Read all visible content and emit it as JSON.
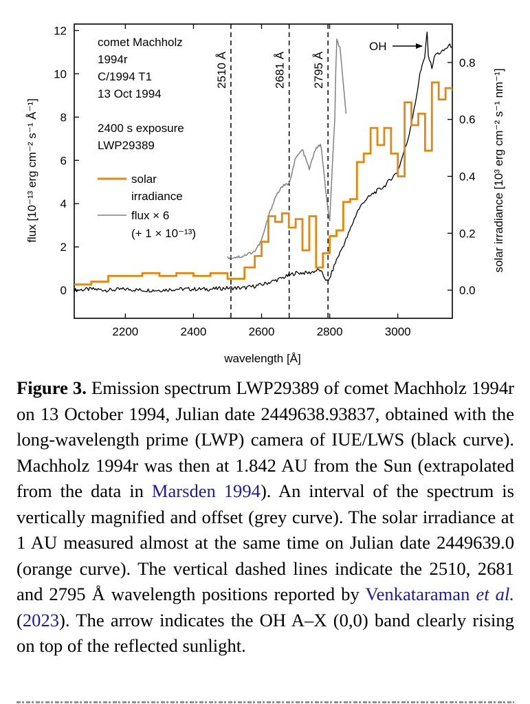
{
  "chart_data": {
    "type": "line",
    "xlabel": "wavelength [Å]",
    "ylabel_left": "flux [10⁻¹³ erg cm⁻² s⁻¹ Å⁻¹]",
    "ylabel_right": "solar irradiance [10³ erg cm⁻² s⁻¹ nm⁻¹]",
    "xlim": [
      2050,
      3160
    ],
    "ylim_left": [
      -1.3,
      12.3
    ],
    "ylim_right": [
      -0.0988,
      0.935
    ],
    "x_ticks": [
      2200,
      2400,
      2600,
      2800,
      3000
    ],
    "y_ticks_left": [
      0,
      2,
      4,
      6,
      8,
      10,
      12
    ],
    "y_ticks_right": [
      0.0,
      0.2,
      0.4,
      0.6,
      0.8
    ],
    "info_text": [
      "comet Machholz",
      "1994r",
      "C/1994 T1",
      "13 Oct 1994",
      "2400 s exposure",
      "LWP29389"
    ],
    "legend": {
      "solar": [
        "solar",
        "irradiance"
      ],
      "flux": [
        "flux × 6",
        "(+ 1 × 10⁻¹³)"
      ]
    },
    "vlines": [
      {
        "x": 2510,
        "label": "2510 Å"
      },
      {
        "x": 2681,
        "label": "2681 Å"
      },
      {
        "x": 2795,
        "label": "2795 Å"
      }
    ],
    "annotation": {
      "text": "OH",
      "x": 3085,
      "y": 11.7
    },
    "colors": {
      "black": "#000000",
      "grey": "#808080",
      "orange": "#E8860A"
    },
    "series": [
      {
        "name": "comet spectrum (black)",
        "axis": "left",
        "x": [
          2050,
          2100,
          2150,
          2200,
          2250,
          2300,
          2350,
          2400,
          2450,
          2500,
          2550,
          2600,
          2650,
          2700,
          2740,
          2770,
          2795,
          2820,
          2850,
          2880,
          2900,
          2930,
          2960,
          3000,
          3030,
          3050,
          3065,
          3080,
          3085,
          3090,
          3100,
          3110,
          3130,
          3150,
          3160
        ],
        "y": [
          0.0,
          0.05,
          0.0,
          0.05,
          0.0,
          0.0,
          0.05,
          0.05,
          0.05,
          0.1,
          0.1,
          0.25,
          0.5,
          0.8,
          0.8,
          0.95,
          0.35,
          1.4,
          2.4,
          3.6,
          4.1,
          4.5,
          4.8,
          5.5,
          7.0,
          8.5,
          10.0,
          10.8,
          12.1,
          10.8,
          10.3,
          10.9,
          11.0,
          11.3,
          11.3
        ]
      },
      {
        "name": "flux × 6 (+ 1 × 10⁻¹³) (grey)",
        "axis": "left",
        "x": [
          2500,
          2540,
          2580,
          2600,
          2620,
          2640,
          2660,
          2680,
          2700,
          2720,
          2740,
          2760,
          2775,
          2790,
          2800,
          2815,
          2820,
          2830,
          2840,
          2850
        ],
        "y": [
          1.5,
          1.55,
          1.8,
          2.3,
          3.4,
          4.3,
          4.8,
          4.9,
          6.1,
          6.5,
          5.6,
          6.6,
          6.7,
          4.3,
          3.2,
          8.0,
          11.6,
          11.2,
          9.5,
          7.8
        ]
      },
      {
        "name": "solar irradiance (orange)",
        "axis": "right",
        "step": true,
        "x": [
          2050,
          2100,
          2150,
          2200,
          2250,
          2300,
          2350,
          2400,
          2450,
          2500,
          2550,
          2580,
          2600,
          2620,
          2640,
          2660,
          2680,
          2700,
          2720,
          2740,
          2760,
          2780,
          2800,
          2820,
          2840,
          2860,
          2880,
          2900,
          2920,
          2940,
          2960,
          2980,
          3000,
          3020,
          3040,
          3060,
          3080,
          3100,
          3120,
          3140,
          3160
        ],
        "y": [
          0.02,
          0.03,
          0.05,
          0.05,
          0.06,
          0.05,
          0.06,
          0.05,
          0.06,
          0.04,
          0.08,
          0.12,
          0.17,
          0.26,
          0.24,
          0.27,
          0.22,
          0.25,
          0.14,
          0.26,
          0.08,
          0.13,
          0.19,
          0.21,
          0.31,
          0.32,
          0.45,
          0.48,
          0.57,
          0.51,
          0.57,
          0.48,
          0.4,
          0.66,
          0.58,
          0.62,
          0.49,
          0.73,
          0.67,
          0.71,
          0.7
        ]
      }
    ]
  },
  "caption": {
    "label": "Figure 3.",
    "p1": " Emission spectrum LWP29389 of comet Machholz 1994r on 13 October 1994, Julian date 2449638.93837, obtained with the long-wavelength prime (LWP) camera of IUE/LWS (black curve). Machholz 1994r was then at 1.842 AU from the Sun (extrapolated from the data in ",
    "ref1": "Marsden 1994",
    "p2": "). An interval of the spectrum is vertically magnified and offset (grey curve). The solar irradiance at 1 AU measured almost at the same time on Julian date 2449639.0 (orange curve). The vertical dashed lines indicate the 2510, 2681 and 2795 Å wavelength positions reported by ",
    "ref2_author": "Venkataraman ",
    "ref2_etal": "et al.",
    "p3": " (",
    "ref2_year": "2023",
    "p4": "). The arrow indicates the OH A–X (0,0) band clearly rising on top of the reflected sunlight."
  }
}
